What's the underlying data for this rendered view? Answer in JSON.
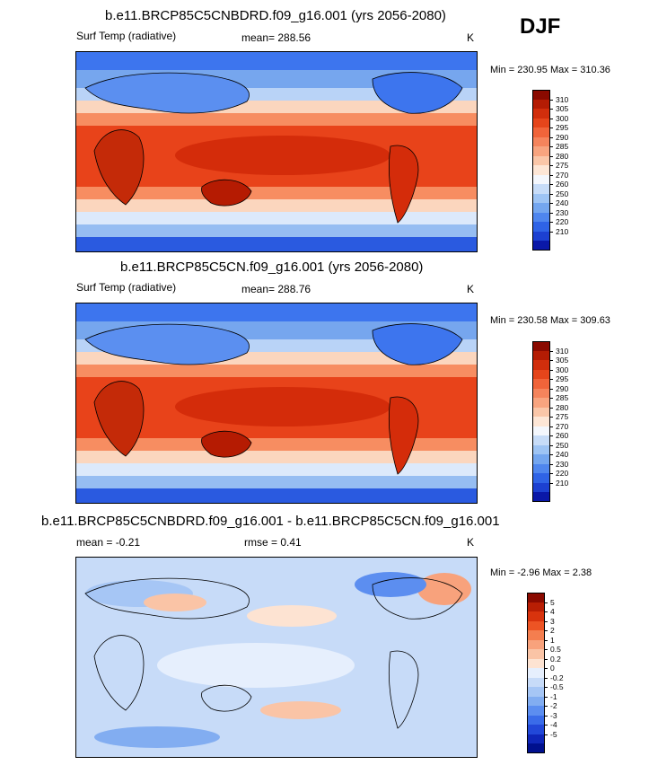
{
  "season": "DJF",
  "units": "K",
  "colors": {
    "warm_scale": [
      "#7f0000",
      "#b51b02",
      "#d42c0a",
      "#e8431a",
      "#f26839",
      "#f78d61",
      "#f9b390",
      "#fbd6be",
      "#fff1e6"
    ],
    "cold_scale": [
      "#dce9fb",
      "#b9d3f7",
      "#96bdf2",
      "#76a6ee",
      "#5b8ff0",
      "#3d75ee",
      "#2a5ae0",
      "#1d3ecc",
      "#0f21b3",
      "#000f99"
    ],
    "coast": "#000000"
  },
  "chart_data": [
    {
      "type": "heatmap",
      "title": "b.e11.BRCP85C5CNBDRD.f09_g16.001 (yrs 2056-2080)",
      "left_label": "Surf Temp (radiative)",
      "mean_label": "mean= 288.56",
      "units": "K",
      "minmax_label": "Min = 230.95 Max = 310.36",
      "min": 230.95,
      "max": 310.36,
      "mean": 288.56,
      "colorbar_levels": [
        "310",
        "305",
        "300",
        "295",
        "290",
        "285",
        "280",
        "275",
        "270",
        "260",
        "250",
        "240",
        "230",
        "220",
        "210"
      ],
      "colorbar_colors": [
        "#8a0a00",
        "#b41c04",
        "#d12e0c",
        "#e5451b",
        "#f0643a",
        "#f5845c",
        "#f8a47f",
        "#fac6a8",
        "#fde6d6",
        "#f4f7fd",
        "#c7dcf8",
        "#9ec4f4",
        "#74a6ef",
        "#4f86ee",
        "#2f63e6",
        "#1c40d1",
        "#0a18a8"
      ]
    },
    {
      "type": "heatmap",
      "title": "b.e11.BRCP85C5CN.f09_g16.001 (yrs 2056-2080)",
      "left_label": "Surf Temp (radiative)",
      "mean_label": "mean= 288.76",
      "units": "K",
      "minmax_label": "Min = 230.58 Max = 309.63",
      "min": 230.58,
      "max": 309.63,
      "mean": 288.76,
      "colorbar_levels": [
        "310",
        "305",
        "300",
        "295",
        "290",
        "285",
        "280",
        "275",
        "270",
        "260",
        "250",
        "240",
        "230",
        "220",
        "210"
      ],
      "colorbar_colors": [
        "#8a0a00",
        "#b41c04",
        "#d12e0c",
        "#e5451b",
        "#f0643a",
        "#f5845c",
        "#f8a47f",
        "#fac6a8",
        "#fde6d6",
        "#f4f7fd",
        "#c7dcf8",
        "#9ec4f4",
        "#74a6ef",
        "#4f86ee",
        "#2f63e6",
        "#1c40d1",
        "#0a18a8"
      ]
    },
    {
      "type": "heatmap",
      "title": "b.e11.BRCP85C5CNBDRD.f09_g16.001 - b.e11.BRCP85C5CN.f09_g16.001",
      "mean_label": "mean =  -0.21",
      "rmse_label": "rmse =   0.41",
      "units": "K",
      "minmax_label": "Min =  -2.96 Max =   2.38",
      "min": -2.96,
      "max": 2.38,
      "mean": -0.21,
      "rmse": 0.41,
      "colorbar_levels": [
        "5",
        "4",
        "3",
        "2",
        "1",
        "0.5",
        "0.2",
        "0",
        "-0.2",
        "-0.5",
        "-1",
        "-2",
        "-3",
        "-4",
        "-5"
      ],
      "colorbar_colors": [
        "#8a0a00",
        "#b81e04",
        "#d8330d",
        "#ed5424",
        "#f47e4f",
        "#f8a27c",
        "#fac4a6",
        "#fde3d2",
        "#e6effd",
        "#c7dbf8",
        "#a6c6f5",
        "#82adf1",
        "#5c8ef0",
        "#3a6ce9",
        "#2248d8",
        "#0f26b8",
        "#00108e"
      ]
    }
  ]
}
